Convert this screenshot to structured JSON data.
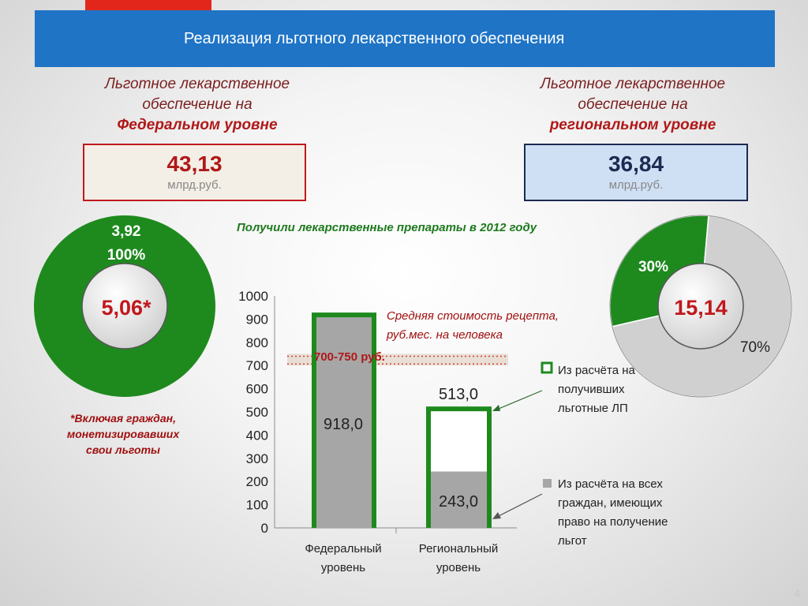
{
  "title": "Реализация льготного лекарственного обеспечения",
  "federal": {
    "line1": "Льготное лекарственное",
    "line2": "обеспечение на",
    "line3": "Федеральном уровне",
    "value": "43,13",
    "unit": "млрд.руб."
  },
  "regional": {
    "line1": "Льготное лекарственное",
    "line2": "обеспечение на",
    "line3": "региональном уровне",
    "value": "36,84",
    "unit": "млрд.руб."
  },
  "subtitle": "Получили лекарственные препараты в 2012 году",
  "footnote": {
    "line1": "*Включая граждан,",
    "line2": "монетизировавших",
    "line3": "свои льготы"
  },
  "page_number": "4",
  "colors": {
    "banner": "#1f74c6",
    "green": "#1e8a1e",
    "gray": "#a6a6a6",
    "light_gray": "#d0d0d0",
    "red": "#b01818"
  },
  "chart_data": [
    {
      "type": "pie",
      "name": "federal-donut",
      "center_label": "5,06*",
      "slices": [
        {
          "value": 3.92,
          "percent": 100,
          "label_value": "3,92",
          "label_percent": "100%",
          "color": "#1e8a1e"
        }
      ]
    },
    {
      "type": "pie",
      "name": "regional-donut",
      "center_label": "15,14",
      "slices": [
        {
          "percent": 30,
          "label": "30%",
          "color": "#1e8a1e"
        },
        {
          "percent": 70,
          "label": "70%",
          "color": "#d0d0d0"
        }
      ]
    },
    {
      "type": "bar",
      "categories": [
        "Федеральный уровень",
        "Региональный уровень"
      ],
      "category_lines": [
        [
          "Федеральный",
          "уровень"
        ],
        [
          "Региональный",
          "уровень"
        ]
      ],
      "series": [
        {
          "name": "Из расчёта на получивших льготные ЛП",
          "values": [
            918.0,
            513.0
          ],
          "labels": [
            "918,0",
            "513,0"
          ],
          "color": "#1e8a1e"
        },
        {
          "name": "Из расчёта на всех граждан, имеющих право на получение льгот",
          "values": [
            918.0,
            243.0
          ],
          "labels": [
            "918,0",
            "243,0"
          ],
          "color": "#a6a6a6"
        }
      ],
      "ylim": [
        0,
        1000
      ],
      "yticks": [
        0,
        100,
        200,
        300,
        400,
        500,
        600,
        700,
        800,
        900,
        1000
      ],
      "band": {
        "range": [
          700,
          750
        ],
        "label": "700-750 руб."
      },
      "annotation": {
        "line1": "Средняя стоимость рецепта,",
        "line2": "руб.мес. на человека"
      },
      "legend": [
        {
          "lines": [
            "Из расчёта на",
            "получивших",
            "льготные ЛП"
          ],
          "color": "#1e8a1e"
        },
        {
          "lines": [
            "Из расчёта на всех",
            "граждан, имеющих",
            "право на получение",
            "льгот"
          ],
          "color": "#a6a6a6"
        }
      ],
      "legend_position": "right"
    }
  ]
}
